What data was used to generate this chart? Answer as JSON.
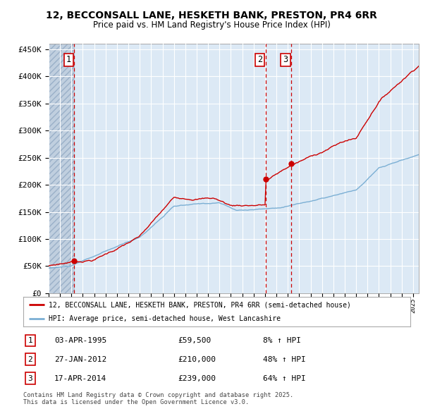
{
  "title": "12, BECCONSALL LANE, HESKETH BANK, PRESTON, PR4 6RR",
  "subtitle": "Price paid vs. HM Land Registry's House Price Index (HPI)",
  "hpi_legend": "HPI: Average price, semi-detached house, West Lancashire",
  "property_legend": "12, BECCONSALL LANE, HESKETH BANK, PRESTON, PR4 6RR (semi-detached house)",
  "transactions": [
    {
      "label": "1",
      "date": "03-APR-1995",
      "price": 59500,
      "pct": "8%",
      "direction": "↑",
      "x_year": 1995.25
    },
    {
      "label": "2",
      "date": "27-JAN-2012",
      "price": 210000,
      "pct": "48%",
      "direction": "↑",
      "x_year": 2012.07
    },
    {
      "label": "3",
      "date": "17-APR-2014",
      "price": 239000,
      "pct": "64%",
      "direction": "↑",
      "x_year": 2014.3
    }
  ],
  "ylim": [
    0,
    460000
  ],
  "xlim_start": 1993.0,
  "xlim_end": 2025.5,
  "plot_bg_color": "#dce9f5",
  "hatch_color": "#c0cfdf",
  "grid_color": "#ffffff",
  "red_line_color": "#cc0000",
  "blue_line_color": "#7bafd4",
  "dashed_line_color": "#cc0000",
  "marker_color": "#cc0000",
  "footnote": "Contains HM Land Registry data © Crown copyright and database right 2025.\nThis data is licensed under the Open Government Licence v3.0."
}
